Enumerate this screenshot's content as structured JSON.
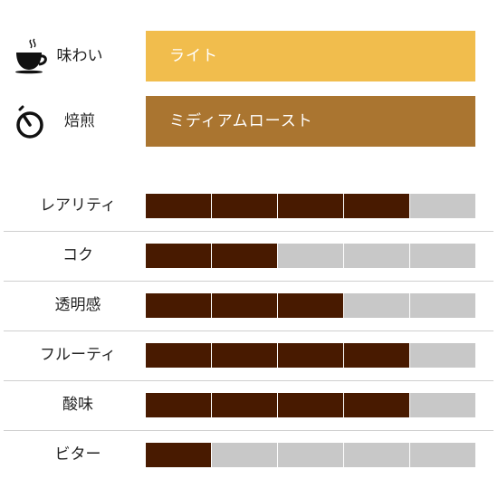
{
  "colors": {
    "flavor_bar": "#f1bd4d",
    "roast_bar": "#aa7530",
    "filled": "#481a00",
    "empty": "#c8c8c8"
  },
  "flavor": {
    "icon": "coffee-cup-icon",
    "label": "味わい",
    "value": "ライト"
  },
  "roast": {
    "icon": "roast-timer-icon",
    "label": "焙煎",
    "value": "ミディアムロースト"
  },
  "ratings": [
    {
      "label": "レアリティ",
      "score": 4,
      "max": 5
    },
    {
      "label": "コク",
      "score": 2,
      "max": 5
    },
    {
      "label": "透明感",
      "score": 3,
      "max": 5
    },
    {
      "label": "フルーティ",
      "score": 4,
      "max": 5
    },
    {
      "label": "酸味",
      "score": 4,
      "max": 5
    },
    {
      "label": "ビター",
      "score": 1,
      "max": 5
    }
  ]
}
